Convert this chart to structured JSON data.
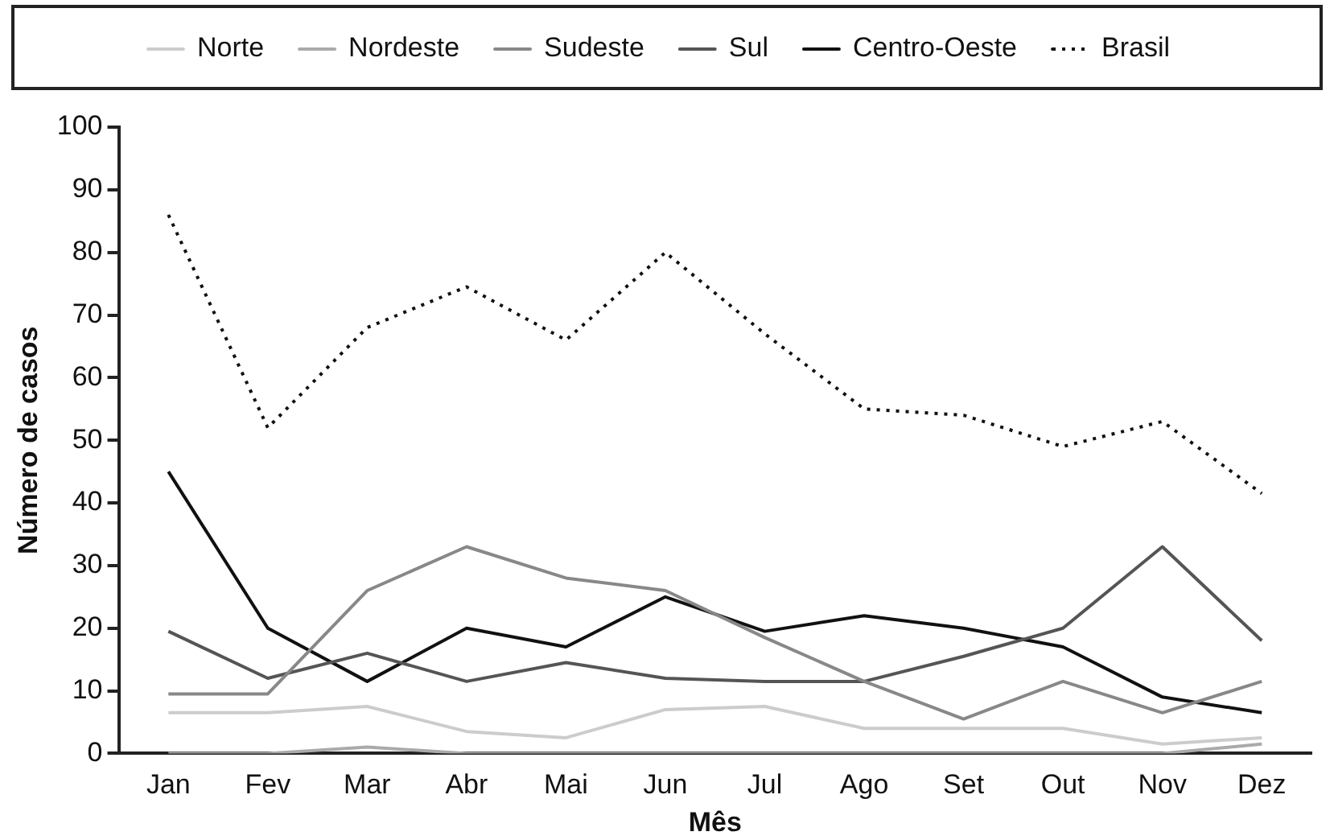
{
  "chart_data": {
    "type": "line",
    "xlabel": "Mês",
    "ylabel": "Número de casos",
    "categories": [
      "Jan",
      "Fev",
      "Mar",
      "Abr",
      "Mai",
      "Jun",
      "Jul",
      "Ago",
      "Set",
      "Out",
      "Nov",
      "Dez"
    ],
    "series": [
      {
        "name": "Norte",
        "color": "#cccccc",
        "line_style": "solid",
        "values": [
          6.5,
          6.5,
          7.5,
          3.5,
          2.5,
          7,
          7.5,
          4,
          4,
          4,
          1.5,
          2.5
        ]
      },
      {
        "name": "Nordeste",
        "color": "#aaaaaa",
        "line_style": "solid",
        "values": [
          0,
          0,
          1,
          0,
          0,
          0,
          0,
          0,
          0,
          0,
          0,
          1.5
        ]
      },
      {
        "name": "Sudeste",
        "color": "#888888",
        "line_style": "solid",
        "values": [
          9.5,
          9.5,
          26,
          33,
          28,
          26,
          18.5,
          11.5,
          5.5,
          11.5,
          6.5,
          11.5
        ]
      },
      {
        "name": "Sul",
        "color": "#555555",
        "line_style": "solid",
        "values": [
          19.5,
          12,
          16,
          11.5,
          14.5,
          12,
          11.5,
          11.5,
          15.5,
          20,
          33,
          18
        ]
      },
      {
        "name": "Centro-Oeste",
        "color": "#111111",
        "line_style": "solid",
        "values": [
          45,
          20,
          11.5,
          20,
          17,
          25,
          19.5,
          22,
          20,
          17,
          9,
          6.5
        ]
      },
      {
        "name": "Brasil",
        "color": "#111111",
        "line_style": "dotted",
        "values": [
          86,
          52,
          68,
          74.5,
          66,
          80,
          67,
          55,
          54,
          49,
          53,
          41.5
        ]
      }
    ],
    "ylim": [
      0,
      100
    ],
    "yticks": [
      0,
      10,
      20,
      30,
      40,
      50,
      60,
      70,
      80,
      90,
      100
    ],
    "grid": false,
    "legend": "top",
    "marker": "none"
  }
}
